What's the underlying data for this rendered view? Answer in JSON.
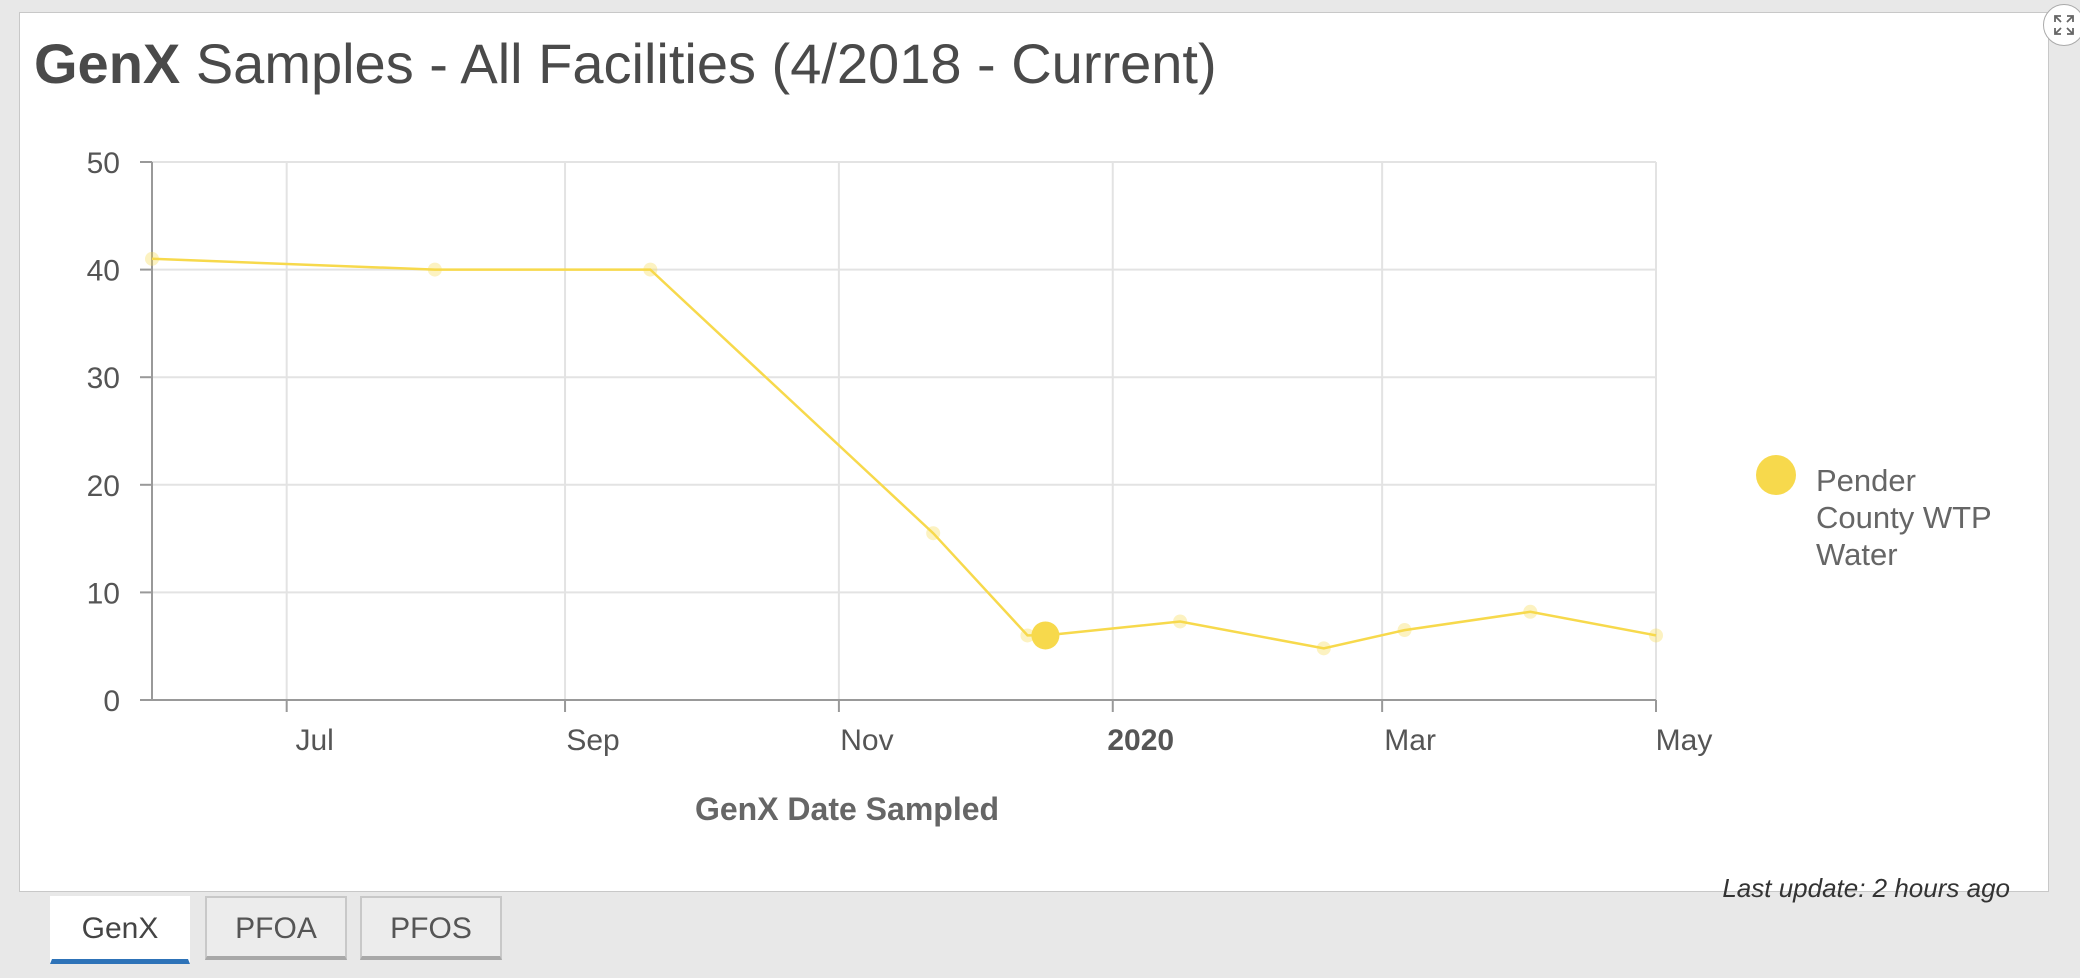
{
  "title": {
    "bold": "GenX",
    "rest": " Samples - All Facilities (4/2018 - Current)"
  },
  "footer": {
    "last_update": "Last update: 2 hours ago"
  },
  "tabs": [
    {
      "label": "GenX",
      "active": true
    },
    {
      "label": "PFOA",
      "active": false
    },
    {
      "label": "PFOS",
      "active": false
    }
  ],
  "icons": {
    "expand": "expand-icon"
  },
  "chart_data": {
    "type": "line",
    "title": "GenX Samples - All Facilities (4/2018 - Current)",
    "xlabel": "GenX Date Sampled",
    "ylabel": "",
    "ylim": [
      0,
      50
    ],
    "xlim": [
      "2019-06-01",
      "2020-05-01"
    ],
    "yticks": [
      0,
      10,
      20,
      30,
      40,
      50
    ],
    "xticks": [
      {
        "date": "2019-07-01",
        "label": "Jul",
        "bold": false
      },
      {
        "date": "2019-09-01",
        "label": "Sep",
        "bold": false
      },
      {
        "date": "2019-11-01",
        "label": "Nov",
        "bold": false
      },
      {
        "date": "2020-01-01",
        "label": "2020",
        "bold": true
      },
      {
        "date": "2020-03-01",
        "label": "Mar",
        "bold": false
      },
      {
        "date": "2020-05-01",
        "label": "May",
        "bold": false
      }
    ],
    "grid": true,
    "legend_position": "right",
    "color": "#f7d94c",
    "series": [
      {
        "name": "Pender County WTP Water",
        "highlighted_index": 5,
        "points": [
          {
            "x": "2019-06-01",
            "y": 41
          },
          {
            "x": "2019-08-03",
            "y": 40
          },
          {
            "x": "2019-09-20",
            "y": 40
          },
          {
            "x": "2019-11-22",
            "y": 15.5
          },
          {
            "x": "2019-12-13",
            "y": 6
          },
          {
            "x": "2019-12-17",
            "y": 6
          },
          {
            "x": "2020-01-16",
            "y": 7.3
          },
          {
            "x": "2020-02-17",
            "y": 4.8
          },
          {
            "x": "2020-03-06",
            "y": 6.5
          },
          {
            "x": "2020-04-03",
            "y": 8.2
          },
          {
            "x": "2020-05-01",
            "y": 6
          }
        ]
      }
    ]
  }
}
